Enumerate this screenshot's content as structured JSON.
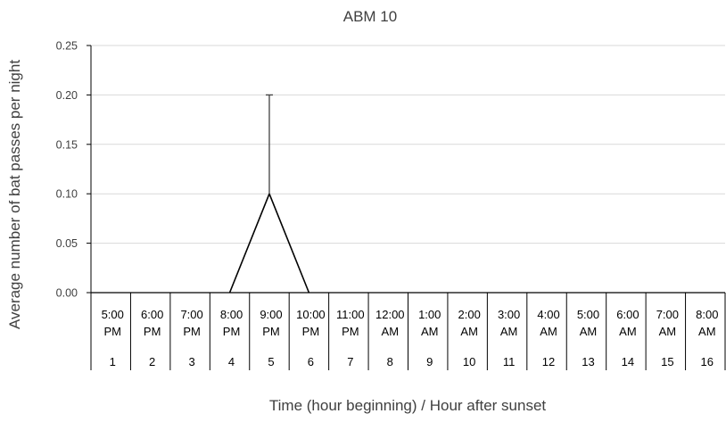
{
  "chart_data": {
    "type": "line",
    "title": "ABM 10",
    "xlabel": "Time (hour beginning) / Hour after sunset",
    "ylabel": "Average number of bat passes per night",
    "ylim": [
      0,
      0.25
    ],
    "yticks": [
      "0.00",
      "0.05",
      "0.10",
      "0.15",
      "0.20",
      "0.25"
    ],
    "grid": true,
    "legend": "none",
    "categories": [
      {
        "time": [
          "5:00",
          "PM"
        ],
        "hour": "1"
      },
      {
        "time": [
          "6:00",
          "PM"
        ],
        "hour": "2"
      },
      {
        "time": [
          "7:00",
          "PM"
        ],
        "hour": "3"
      },
      {
        "time": [
          "8:00",
          "PM"
        ],
        "hour": "4"
      },
      {
        "time": [
          "9:00",
          "PM"
        ],
        "hour": "5"
      },
      {
        "time": [
          "10:00",
          "PM"
        ],
        "hour": "6"
      },
      {
        "time": [
          "11:00",
          "PM"
        ],
        "hour": "7"
      },
      {
        "time": [
          "12:00",
          "AM"
        ],
        "hour": "8"
      },
      {
        "time": [
          "1:00",
          "AM"
        ],
        "hour": "9"
      },
      {
        "time": [
          "2:00",
          "AM"
        ],
        "hour": "10"
      },
      {
        "time": [
          "3:00",
          "AM"
        ],
        "hour": "11"
      },
      {
        "time": [
          "4:00",
          "AM"
        ],
        "hour": "12"
      },
      {
        "time": [
          "5:00",
          "AM"
        ],
        "hour": "13"
      },
      {
        "time": [
          "6:00",
          "AM"
        ],
        "hour": "14"
      },
      {
        "time": [
          "7:00",
          "AM"
        ],
        "hour": "15"
      },
      {
        "time": [
          "8:00",
          "AM"
        ],
        "hour": "16"
      }
    ],
    "series": [
      {
        "values": [
          0,
          0,
          0,
          0,
          0.1,
          0,
          0,
          0,
          0,
          0,
          0,
          0,
          0,
          0,
          0,
          0
        ],
        "error_plus": [
          0,
          0,
          0,
          0,
          0.1,
          0,
          0,
          0,
          0,
          0,
          0,
          0,
          0,
          0,
          0,
          0
        ]
      }
    ],
    "colors": {
      "line": "#000000",
      "grid": "#d9d9d9",
      "error_bar": "#404040"
    }
  }
}
